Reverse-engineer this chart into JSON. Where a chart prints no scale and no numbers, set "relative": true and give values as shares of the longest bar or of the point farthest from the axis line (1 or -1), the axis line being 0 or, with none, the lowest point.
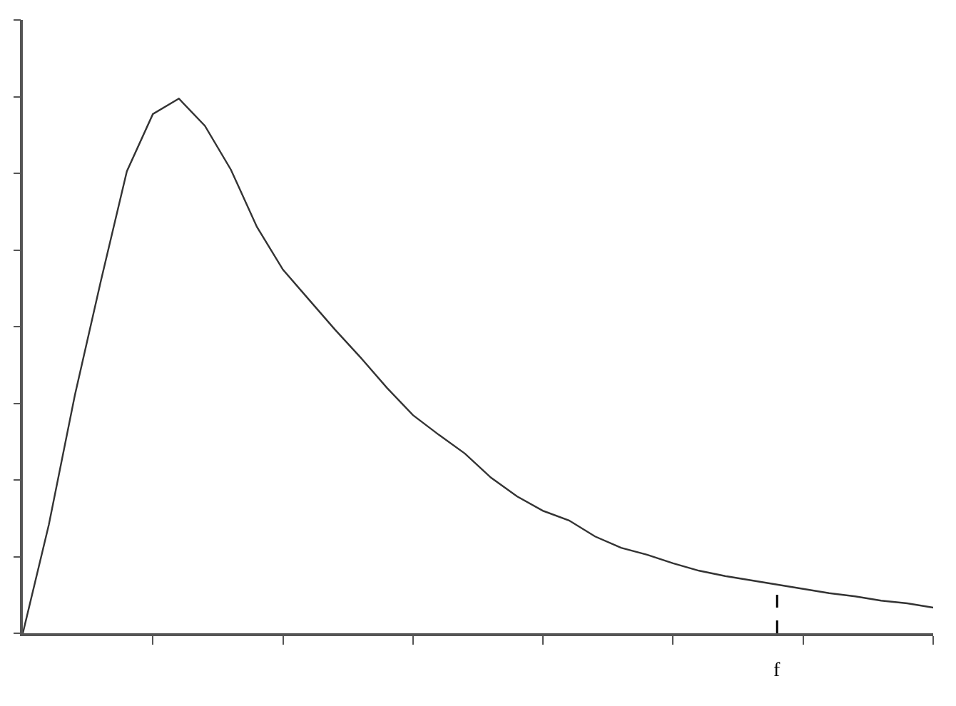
{
  "chart_data": {
    "type": "line",
    "relative": true,
    "categories": [
      null,
      null,
      null,
      null,
      null,
      null,
      null,
      null,
      null,
      null,
      null,
      null,
      null,
      null,
      null,
      null,
      null,
      null,
      null,
      null,
      null,
      null,
      null,
      null,
      null,
      null,
      null,
      null,
      null,
      null,
      null,
      null,
      null,
      null,
      null,
      null
    ],
    "series": [
      {
        "color": "#333333",
        "values": [
          0,
          0.203,
          0.445,
          0.659,
          0.864,
          0.971,
          1,
          0.949,
          0.867,
          0.76,
          0.68,
          0.624,
          0.568,
          0.515,
          0.459,
          0.408,
          0.371,
          0.336,
          0.291,
          0.256,
          0.229,
          0.211,
          0.181,
          0.16,
          0.147,
          0.131,
          0.117,
          0.107,
          0.099,
          0.091,
          0.083,
          0.075,
          0.069,
          0.061,
          0.056,
          0.048
        ]
      }
    ],
    "annotations": [
      "f"
    ],
    "marker": "none",
    "line_style": "solid"
  }
}
